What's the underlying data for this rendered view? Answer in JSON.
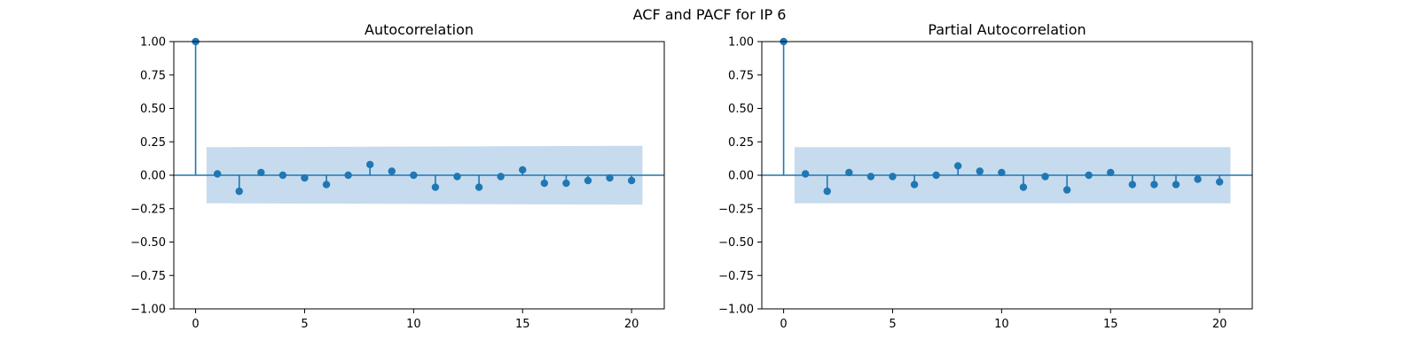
{
  "figure": {
    "title": "ACF and PACF for IP 6"
  },
  "colors": {
    "series": "#1f77b4",
    "confidence_band": "#c6dbed",
    "axes": "#000000"
  },
  "chart_data": [
    {
      "type": "stem",
      "title": "Autocorrelation",
      "xlabel": "",
      "ylabel": "",
      "xlim": [
        -1,
        21.5
      ],
      "ylim": [
        -1.0,
        1.0
      ],
      "xticks": [
        0,
        5,
        10,
        15,
        20
      ],
      "xtick_labels": [
        "0",
        "5",
        "10",
        "15",
        "20"
      ],
      "yticks": [
        -1.0,
        -0.75,
        -0.5,
        -0.25,
        0.0,
        0.25,
        0.5,
        0.75,
        1.0
      ],
      "ytick_labels": [
        "−1.00",
        "−0.75",
        "−0.50",
        "−0.25",
        "0.00",
        "0.25",
        "0.50",
        "0.75",
        "1.00"
      ],
      "lags": [
        0,
        1,
        2,
        3,
        4,
        5,
        6,
        7,
        8,
        9,
        10,
        11,
        12,
        13,
        14,
        15,
        16,
        17,
        18,
        19,
        20
      ],
      "values": [
        1.0,
        0.01,
        -0.12,
        0.02,
        0.0,
        -0.02,
        -0.07,
        0.0,
        0.08,
        0.03,
        0.0,
        -0.09,
        -0.01,
        -0.09,
        -0.01,
        0.04,
        -0.06,
        -0.06,
        -0.04,
        -0.02,
        -0.04
      ],
      "confidence_band": {
        "x_range": [
          0.5,
          20.5
        ],
        "start": 0.21,
        "end": 0.22
      },
      "grid": false
    },
    {
      "type": "stem",
      "title": "Partial Autocorrelation",
      "xlabel": "",
      "ylabel": "",
      "xlim": [
        -1,
        21.5
      ],
      "ylim": [
        -1.0,
        1.0
      ],
      "xticks": [
        0,
        5,
        10,
        15,
        20
      ],
      "xtick_labels": [
        "0",
        "5",
        "10",
        "15",
        "20"
      ],
      "yticks": [
        -1.0,
        -0.75,
        -0.5,
        -0.25,
        0.0,
        0.25,
        0.5,
        0.75,
        1.0
      ],
      "ytick_labels": [
        "−1.00",
        "−0.75",
        "−0.50",
        "−0.25",
        "0.00",
        "0.25",
        "0.50",
        "0.75",
        "1.00"
      ],
      "lags": [
        0,
        1,
        2,
        3,
        4,
        5,
        6,
        7,
        8,
        9,
        10,
        11,
        12,
        13,
        14,
        15,
        16,
        17,
        18,
        19,
        20
      ],
      "values": [
        1.0,
        0.01,
        -0.12,
        0.02,
        -0.01,
        -0.01,
        -0.07,
        0.0,
        0.07,
        0.03,
        0.02,
        -0.09,
        -0.01,
        -0.11,
        0.0,
        0.02,
        -0.07,
        -0.07,
        -0.07,
        -0.03,
        -0.05
      ],
      "confidence_band": {
        "x_range": [
          0.5,
          20.5
        ],
        "start": 0.21,
        "end": 0.21
      },
      "grid": false
    }
  ]
}
